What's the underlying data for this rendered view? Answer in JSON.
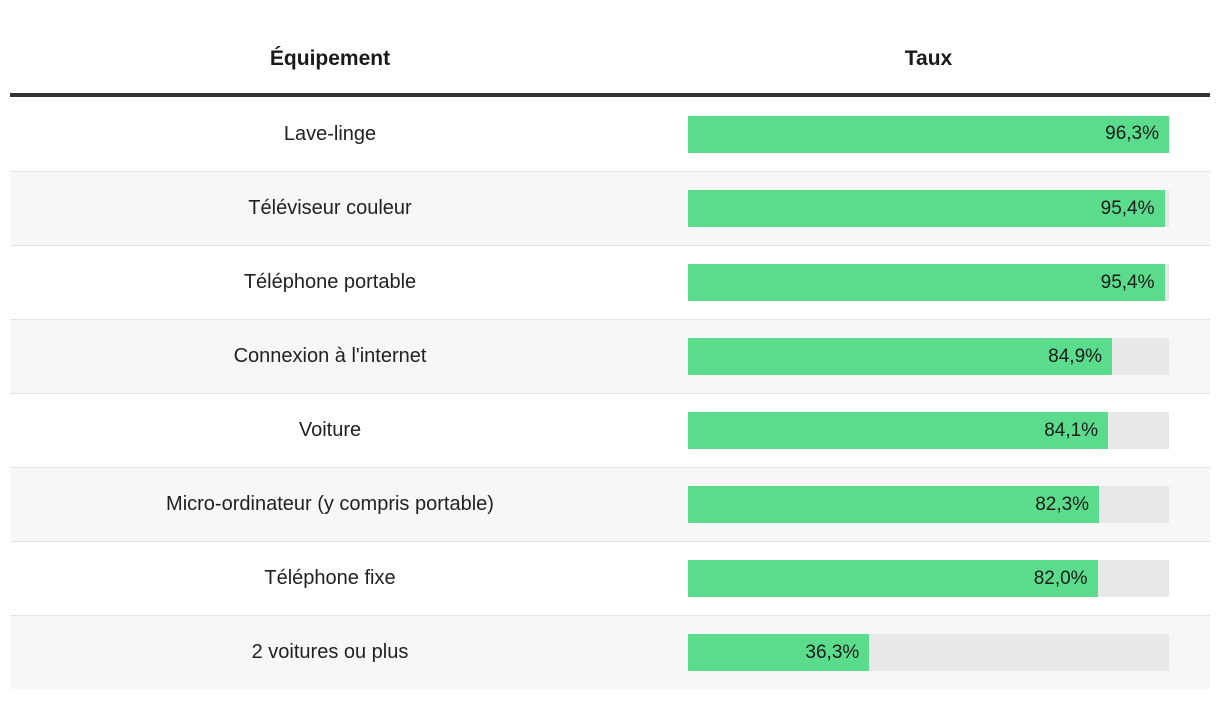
{
  "table": {
    "columns": [
      {
        "label": "Équipement"
      },
      {
        "label": "Taux"
      }
    ],
    "rows": [
      {
        "label": "Lave-linge",
        "value": 96.3,
        "display": "96,3%"
      },
      {
        "label": "Téléviseur couleur",
        "value": 95.4,
        "display": "95,4%"
      },
      {
        "label": "Téléphone portable",
        "value": 95.4,
        "display": "95,4%"
      },
      {
        "label": "Connexion à l'internet",
        "value": 84.9,
        "display": "84,9%"
      },
      {
        "label": "Voiture",
        "value": 84.1,
        "display": "84,1%"
      },
      {
        "label": "Micro-ordinateur (y compris portable)",
        "value": 82.3,
        "display": "82,3%"
      },
      {
        "label": "Téléphone fixe",
        "value": 82.0,
        "display": "82,0%"
      },
      {
        "label": "2 voitures ou plus",
        "value": 36.3,
        "display": "36,3%"
      }
    ]
  },
  "chart_data": {
    "type": "bar",
    "orientation": "horizontal",
    "title": "",
    "xlabel": "Taux",
    "ylabel": "Équipement",
    "categories": [
      "Lave-linge",
      "Téléviseur couleur",
      "Téléphone portable",
      "Connexion à l'internet",
      "Voiture",
      "Micro-ordinateur (y compris portable)",
      "Téléphone fixe",
      "2 voitures ou plus"
    ],
    "values": [
      96.3,
      95.4,
      95.4,
      84.9,
      84.1,
      82.3,
      82.0,
      36.3
    ],
    "value_labels": [
      "96,3%",
      "95,4%",
      "95,4%",
      "84,9%",
      "84,1%",
      "82,3%",
      "82,0%",
      "36,3%"
    ],
    "bar_scale_max": 96.3,
    "grid": false,
    "legend": "none"
  },
  "colors": {
    "bar_fill": "#5bdc8d",
    "bar_track": "#e8e8e8",
    "alt_row_bg": "#f7f7f7",
    "header_rule": "#333333",
    "row_separator": "#e4e4e4",
    "text": "#1a1a1a"
  }
}
